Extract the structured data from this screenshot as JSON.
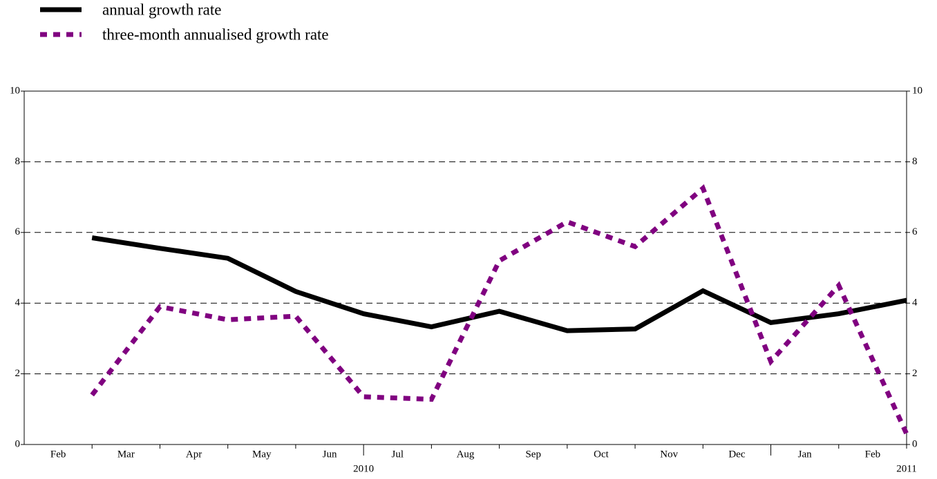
{
  "chart_data": {
    "type": "line",
    "categories": [
      "Feb",
      "Mar",
      "Apr",
      "May",
      "Jun",
      "Jul",
      "Aug",
      "Sep",
      "Oct",
      "Nov",
      "Dec",
      "Jan",
      "Feb"
    ],
    "year_labels": [
      "2010",
      "2011"
    ],
    "series": [
      {
        "name": "annual growth rate",
        "color": "#000000",
        "dash": "solid",
        "values": [
          5.85,
          5.55,
          5.27,
          4.33,
          3.7,
          3.33,
          3.77,
          3.22,
          3.27,
          4.35,
          3.45,
          3.7,
          4.08
        ]
      },
      {
        "name": "three-month annualised growth rate",
        "color": "#800080",
        "dash": "dashed",
        "values": [
          1.4,
          3.9,
          3.53,
          3.63,
          1.35,
          1.28,
          5.2,
          6.3,
          5.6,
          7.25,
          2.35,
          4.5,
          0.3
        ]
      }
    ],
    "ylim": [
      0,
      10
    ],
    "yticks": [
      0,
      2,
      4,
      6,
      8,
      10
    ],
    "y2lim": [
      0,
      10
    ],
    "y2ticks": [
      0,
      2,
      4,
      6,
      8,
      10
    ],
    "grid": true
  }
}
